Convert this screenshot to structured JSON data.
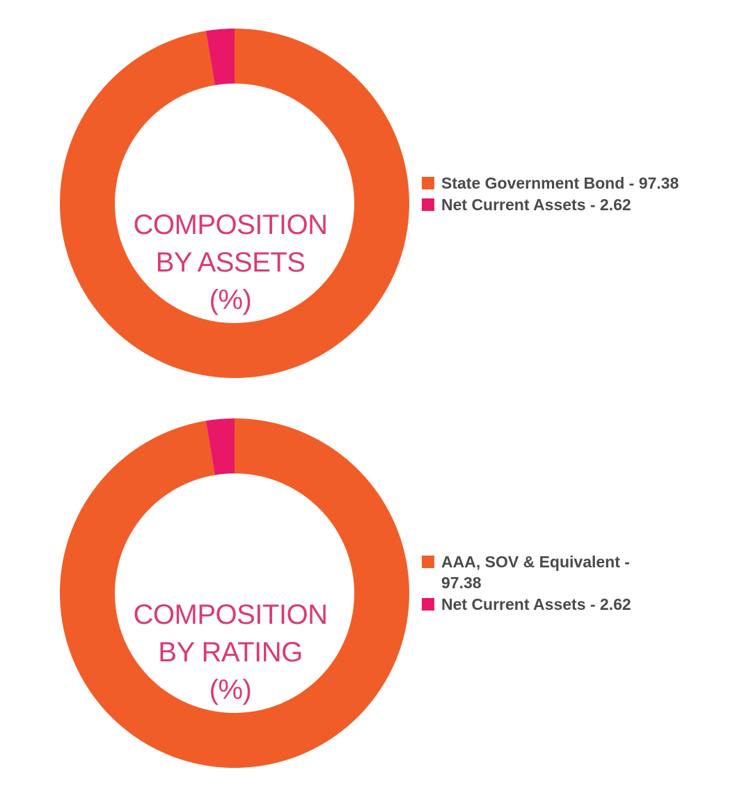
{
  "colors": {
    "primary": "#f15d28",
    "secondary": "#e91768",
    "title": "#d93a76",
    "legend_text": "#4a4a4a"
  },
  "chart_data": [
    {
      "type": "pie",
      "title_lines": [
        "COMPOSITION",
        "BY ASSETS",
        "(%)"
      ],
      "slices": [
        {
          "label": "State Government Bond - 97.38",
          "value": 97.38
        },
        {
          "label": "Net Current Assets - 2.62",
          "value": 2.62
        }
      ],
      "legend_position": "right"
    },
    {
      "type": "pie",
      "title_lines": [
        "COMPOSITION",
        "BY RATING",
        "(%)"
      ],
      "slices": [
        {
          "label": "AAA, SOV & Equivalent - 97.38",
          "value": 97.38
        },
        {
          "label": "Net Current Assets - 2.62",
          "value": 2.62
        }
      ],
      "legend_position": "right"
    }
  ]
}
